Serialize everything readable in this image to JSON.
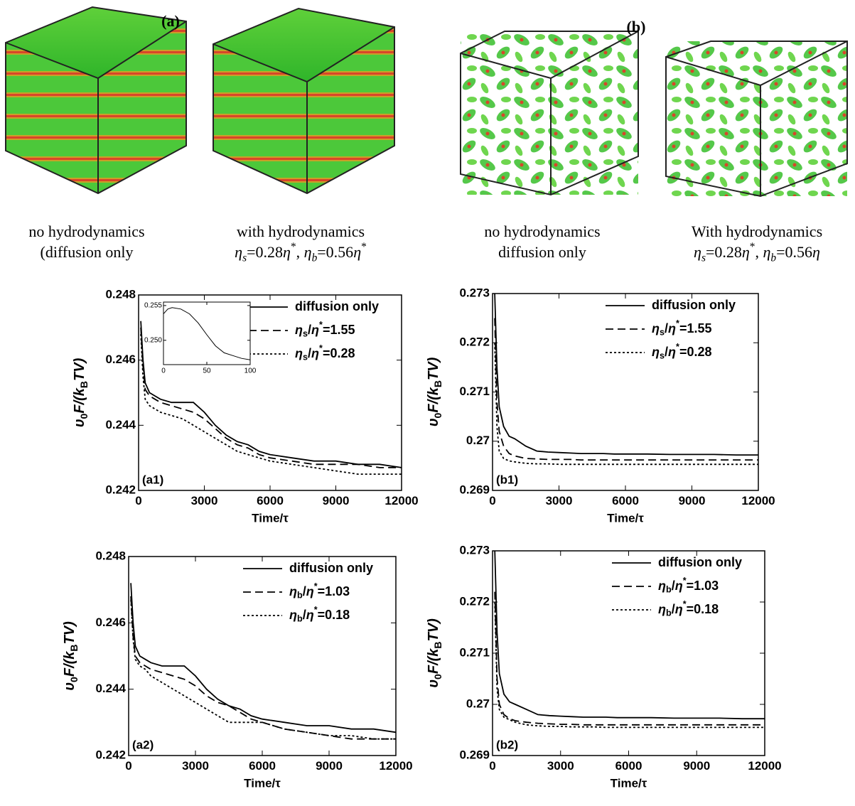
{
  "figure": {
    "groups": [
      {
        "label": "(a)",
        "captions": [
          [
            "no hydrodynamics",
            "(diffusion only"
          ],
          [
            "with hydrodynamics",
            [
              {
                "text": "η",
                "style": "italic"
              },
              {
                "text": "s",
                "shift": "sub",
                "style": "italic"
              },
              {
                "text": "=0.28"
              },
              {
                "text": "η",
                "style": "italic"
              },
              {
                "text": "*",
                "shift": "sup"
              },
              {
                "text": ", "
              },
              {
                "text": "η",
                "style": "italic"
              },
              {
                "text": "b",
                "shift": "sub",
                "style": "italic"
              },
              {
                "text": "=0.56"
              },
              {
                "text": "η",
                "style": "italic"
              },
              {
                "text": "*",
                "shift": "sup"
              }
            ]
          ]
        ]
      },
      {
        "label": "(b)",
        "captions": [
          [
            "no hydrodynamics",
            "diffusion only"
          ],
          [
            "With hydrodynamics",
            [
              {
                "text": "η",
                "style": "italic"
              },
              {
                "text": "s",
                "shift": "sub",
                "style": "italic"
              },
              {
                "text": "=0.28"
              },
              {
                "text": "η",
                "style": "italic"
              },
              {
                "text": "*",
                "shift": "sup"
              },
              {
                "text": ", "
              },
              {
                "text": "η",
                "style": "italic"
              },
              {
                "text": "b",
                "shift": "sub",
                "style": "italic"
              },
              {
                "text": "=0.56"
              },
              {
                "text": "η",
                "style": "italic"
              }
            ]
          ]
        ]
      }
    ]
  },
  "chart_data": [
    {
      "type": "line",
      "label": "(a1)",
      "xlabel": "Time/τ",
      "ylabel": [
        {
          "text": "υ",
          "style": "italic"
        },
        {
          "text": "0",
          "shift": "sub"
        },
        {
          "text": "F/(k",
          "style": "italic"
        },
        {
          "text": "B",
          "shift": "sub"
        },
        {
          "text": "TV)",
          "style": "italic"
        }
      ],
      "x": [
        100,
        200,
        300,
        500,
        750,
        1000,
        1500,
        2000,
        2500,
        3000,
        3500,
        4000,
        4500,
        5000,
        5500,
        6000,
        7000,
        8000,
        9000,
        10000,
        11000,
        12000
      ],
      "xlim": [
        0,
        12000
      ],
      "xticks": [
        0,
        3000,
        6000,
        9000,
        12000
      ],
      "ylim": [
        0.242,
        0.248
      ],
      "yticks": [
        0.242,
        0.244,
        0.246,
        0.248
      ],
      "series": [
        {
          "name": [
            {
              "text": "diffusion only"
            }
          ],
          "color": "#000",
          "dash": "solid",
          "values": [
            0.2472,
            0.246,
            0.2453,
            0.245,
            0.2449,
            0.2448,
            0.2447,
            0.2447,
            0.2447,
            0.2444,
            0.244,
            0.2437,
            0.2435,
            0.2434,
            0.2432,
            0.2431,
            0.243,
            0.2429,
            0.2429,
            0.2428,
            0.2428,
            0.2427
          ]
        },
        {
          "name": [
            {
              "text": "η",
              "style": "italic"
            },
            {
              "text": "s",
              "shift": "sub"
            },
            {
              "text": "/"
            },
            {
              "text": "η",
              "style": "italic"
            },
            {
              "text": "*",
              "shift": "sup"
            },
            {
              "text": "=1.55"
            }
          ],
          "color": "#000",
          "dash": "dashed",
          "values": [
            0.247,
            0.2458,
            0.2451,
            0.2449,
            0.2448,
            0.2447,
            0.2446,
            0.2445,
            0.2444,
            0.2442,
            0.2439,
            0.2436,
            0.2434,
            0.2433,
            0.2431,
            0.243,
            0.2429,
            0.2428,
            0.2428,
            0.2428,
            0.2427,
            0.2427
          ]
        },
        {
          "name": [
            {
              "text": "η",
              "style": "italic"
            },
            {
              "text": "s",
              "shift": "sub"
            },
            {
              "text": "/"
            },
            {
              "text": "η",
              "style": "italic"
            },
            {
              "text": "*",
              "shift": "sup"
            },
            {
              "text": "=0.28"
            }
          ],
          "color": "#000",
          "dash": "dotted",
          "values": [
            0.2468,
            0.2455,
            0.2448,
            0.2446,
            0.2445,
            0.2444,
            0.2443,
            0.2442,
            0.244,
            0.2438,
            0.2436,
            0.2434,
            0.2432,
            0.2431,
            0.243,
            0.2429,
            0.2428,
            0.2427,
            0.2426,
            0.2425,
            0.2425,
            0.2425
          ]
        }
      ],
      "legend": "upper right",
      "inset": {
        "type": "line",
        "x": [
          0,
          5,
          10,
          20,
          30,
          40,
          50,
          60,
          70,
          80,
          90,
          100
        ],
        "xlim": [
          0,
          100
        ],
        "xticks": [
          0,
          50,
          100
        ],
        "ylim": [
          0.2465,
          0.2555
        ],
        "yticks": [
          {
            "value": 0.25,
            "label": "0.250"
          },
          0.255
        ],
        "series": [
          {
            "color": "#000",
            "dash": "solid",
            "values": [
              0.2538,
              0.2545,
              0.2547,
              0.2545,
              0.2538,
              0.2525,
              0.2508,
              0.2492,
              0.2482,
              0.2478,
              0.2474,
              0.2472
            ]
          }
        ]
      }
    },
    {
      "type": "line",
      "label": "(b1)",
      "xlabel": "Time/τ",
      "ylabel": [
        {
          "text": "υ",
          "style": "italic"
        },
        {
          "text": "0",
          "shift": "sub"
        },
        {
          "text": "F/(k",
          "style": "italic"
        },
        {
          "text": "B",
          "shift": "sub"
        },
        {
          "text": "TV)",
          "style": "italic"
        }
      ],
      "x": [
        100,
        200,
        300,
        500,
        750,
        1000,
        1500,
        2000,
        2500,
        3000,
        3500,
        4000,
        4500,
        5000,
        5500,
        6000,
        7000,
        8000,
        9000,
        10000,
        11000,
        12000
      ],
      "xlim": [
        0,
        12000
      ],
      "xticks": [
        0,
        3000,
        6000,
        9000,
        12000
      ],
      "ylim": [
        0.269,
        0.273
      ],
      "yticks": [
        0.269,
        0.27,
        0.271,
        0.272,
        0.273
      ],
      "series": [
        {
          "name": [
            {
              "text": "diffusion only"
            }
          ],
          "color": "#000",
          "dash": "solid",
          "values": [
            0.273,
            0.2715,
            0.2707,
            0.2703,
            0.2701,
            0.27005,
            0.2699,
            0.2698,
            0.26978,
            0.26977,
            0.26976,
            0.26975,
            0.26975,
            0.26975,
            0.26974,
            0.26974,
            0.26974,
            0.26973,
            0.26973,
            0.26973,
            0.26972,
            0.26972
          ]
        },
        {
          "name": [
            {
              "text": "η",
              "style": "italic"
            },
            {
              "text": "s",
              "shift": "sub"
            },
            {
              "text": "/"
            },
            {
              "text": "η",
              "style": "italic"
            },
            {
              "text": "*",
              "shift": "sup"
            },
            {
              "text": "=1.55"
            }
          ],
          "color": "#000",
          "dash": "dashed",
          "values": [
            0.2725,
            0.2708,
            0.2702,
            0.2699,
            0.26975,
            0.2697,
            0.26965,
            0.26964,
            0.26963,
            0.26963,
            0.26963,
            0.26962,
            0.26962,
            0.26962,
            0.26962,
            0.26962,
            0.26962,
            0.26962,
            0.26962,
            0.26962,
            0.26962,
            0.26962
          ]
        },
        {
          "name": [
            {
              "text": "η",
              "style": "italic"
            },
            {
              "text": "s",
              "shift": "sub"
            },
            {
              "text": "/"
            },
            {
              "text": "η",
              "style": "italic"
            },
            {
              "text": "*",
              "shift": "sup"
            },
            {
              "text": "=0.28"
            }
          ],
          "color": "#000",
          "dash": "dotted",
          "values": [
            0.272,
            0.2703,
            0.2698,
            0.26965,
            0.2696,
            0.26958,
            0.26955,
            0.26954,
            0.26954,
            0.26953,
            0.26953,
            0.26953,
            0.26953,
            0.26953,
            0.26953,
            0.26953,
            0.26953,
            0.26953,
            0.26953,
            0.26953,
            0.26953,
            0.26953
          ]
        }
      ],
      "legend": "upper right"
    },
    {
      "type": "line",
      "label": "(a2)",
      "xlabel": "Time/τ",
      "ylabel": [
        {
          "text": "υ",
          "style": "italic"
        },
        {
          "text": "0",
          "shift": "sub"
        },
        {
          "text": "F/(k",
          "style": "italic"
        },
        {
          "text": "B",
          "shift": "sub"
        },
        {
          "text": "TV)",
          "style": "italic"
        }
      ],
      "x": [
        100,
        200,
        300,
        500,
        750,
        1000,
        1500,
        2000,
        2500,
        3000,
        3500,
        4000,
        4500,
        5000,
        5500,
        6000,
        7000,
        8000,
        9000,
        10000,
        11000,
        12000
      ],
      "xlim": [
        0,
        12000
      ],
      "xticks": [
        0,
        3000,
        6000,
        9000,
        12000
      ],
      "ylim": [
        0.242,
        0.248
      ],
      "yticks": [
        0.242,
        0.244,
        0.246,
        0.248
      ],
      "series": [
        {
          "name": [
            {
              "text": "diffusion only"
            }
          ],
          "color": "#000",
          "dash": "solid",
          "values": [
            0.2472,
            0.246,
            0.2453,
            0.245,
            0.2449,
            0.2448,
            0.2447,
            0.2447,
            0.2447,
            0.2444,
            0.244,
            0.2437,
            0.2435,
            0.2434,
            0.2432,
            0.2431,
            0.243,
            0.2429,
            0.2429,
            0.2428,
            0.2428,
            0.2427
          ]
        },
        {
          "name": [
            {
              "text": "η",
              "style": "italic"
            },
            {
              "text": "b",
              "shift": "sub"
            },
            {
              "text": "/"
            },
            {
              "text": "η",
              "style": "italic"
            },
            {
              "text": "*",
              "shift": "sup"
            },
            {
              "text": "=1.03"
            }
          ],
          "color": "#000",
          "dash": "dashed",
          "values": [
            0.2468,
            0.2456,
            0.245,
            0.2448,
            0.2447,
            0.2446,
            0.2445,
            0.2444,
            0.2443,
            0.2441,
            0.2438,
            0.2436,
            0.2435,
            0.2433,
            0.2431,
            0.243,
            0.2428,
            0.2427,
            0.2426,
            0.2425,
            0.2425,
            0.2425
          ]
        },
        {
          "name": [
            {
              "text": "η",
              "style": "italic"
            },
            {
              "text": "b",
              "shift": "sub"
            },
            {
              "text": "/"
            },
            {
              "text": "η",
              "style": "italic"
            },
            {
              "text": "*",
              "shift": "sup"
            },
            {
              "text": "=0.18"
            }
          ],
          "color": "#000",
          "dash": "dotted",
          "values": [
            0.2467,
            0.2455,
            0.2449,
            0.2447,
            0.2446,
            0.2444,
            0.2442,
            0.244,
            0.2438,
            0.2436,
            0.2434,
            0.2432,
            0.243,
            0.243,
            0.243,
            0.243,
            0.2428,
            0.2427,
            0.2426,
            0.2426,
            0.2425,
            0.2425
          ]
        }
      ],
      "legend": "upper right"
    },
    {
      "type": "line",
      "label": "(b2)",
      "xlabel": "Time/τ",
      "ylabel": [
        {
          "text": "υ",
          "style": "italic"
        },
        {
          "text": "0",
          "shift": "sub"
        },
        {
          "text": "F/(k",
          "style": "italic"
        },
        {
          "text": "B",
          "shift": "sub"
        },
        {
          "text": "TV)",
          "style": "italic"
        }
      ],
      "x": [
        100,
        200,
        300,
        500,
        750,
        1000,
        1500,
        2000,
        2500,
        3000,
        3500,
        4000,
        4500,
        5000,
        5500,
        6000,
        7000,
        8000,
        9000,
        10000,
        11000,
        12000
      ],
      "xlim": [
        0,
        12000
      ],
      "xticks": [
        0,
        3000,
        6000,
        9000,
        12000
      ],
      "ylim": [
        0.269,
        0.273
      ],
      "yticks": [
        0.269,
        0.27,
        0.271,
        0.272,
        0.273
      ],
      "series": [
        {
          "name": [
            {
              "text": "diffusion only"
            }
          ],
          "color": "#000",
          "dash": "solid",
          "values": [
            0.273,
            0.2714,
            0.2706,
            0.2702,
            0.27005,
            0.27,
            0.2699,
            0.2698,
            0.26978,
            0.26977,
            0.26976,
            0.26975,
            0.26975,
            0.26975,
            0.26974,
            0.26974,
            0.26974,
            0.26973,
            0.26973,
            0.26973,
            0.26972,
            0.26972
          ]
        },
        {
          "name": [
            {
              "text": "η",
              "style": "italic"
            },
            {
              "text": "b",
              "shift": "sub"
            },
            {
              "text": "/"
            },
            {
              "text": "η",
              "style": "italic"
            },
            {
              "text": "*",
              "shift": "sup"
            },
            {
              "text": "=1.03"
            }
          ],
          "color": "#000",
          "dash": "dashed",
          "values": [
            0.2722,
            0.2705,
            0.27,
            0.2698,
            0.26972,
            0.26968,
            0.26965,
            0.26963,
            0.26962,
            0.26961,
            0.26961,
            0.2696,
            0.2696,
            0.2696,
            0.2696,
            0.2696,
            0.2696,
            0.2696,
            0.2696,
            0.2696,
            0.2696,
            0.2696
          ]
        },
        {
          "name": [
            {
              "text": "η",
              "style": "italic"
            },
            {
              "text": "b",
              "shift": "sub"
            },
            {
              "text": "/"
            },
            {
              "text": "η",
              "style": "italic"
            },
            {
              "text": "*",
              "shift": "sup"
            },
            {
              "text": "=0.18"
            }
          ],
          "color": "#000",
          "dash": "dotted",
          "values": [
            0.272,
            0.2703,
            0.2699,
            0.26975,
            0.2697,
            0.26965,
            0.2696,
            0.26958,
            0.26957,
            0.26957,
            0.26956,
            0.26956,
            0.26956,
            0.26955,
            0.26955,
            0.26955,
            0.26955,
            0.26955,
            0.26955,
            0.26955,
            0.26955,
            0.26955
          ]
        }
      ],
      "legend": "upper right"
    }
  ]
}
